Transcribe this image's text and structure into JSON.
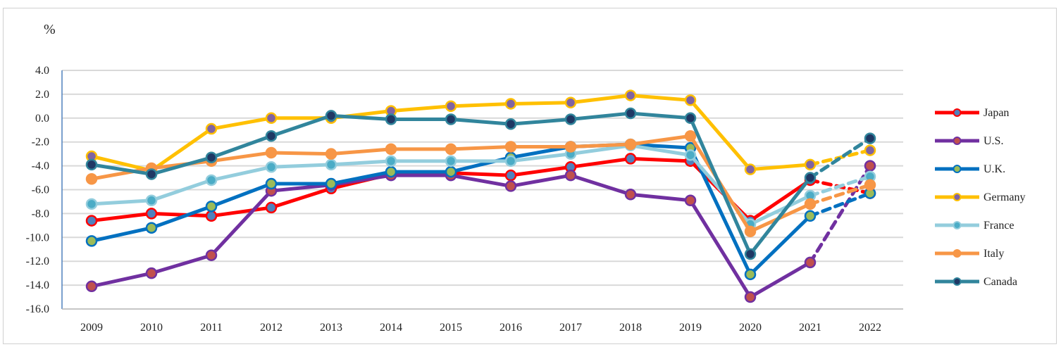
{
  "chart_data": {
    "type": "line",
    "unit_label": "%",
    "title": "",
    "xlabel": "",
    "ylabel": "%",
    "ylim": [
      -16,
      4
    ],
    "y_ticks": [
      "4.0",
      "2.0",
      "0.0",
      "-2.0",
      "-4.0",
      "-6.0",
      "-8.0",
      "-10.0",
      "-12.0",
      "-14.0",
      "-16.0"
    ],
    "y_tick_values": [
      4,
      2,
      0,
      -2,
      -4,
      -6,
      -8,
      -10,
      -12,
      -14,
      -16
    ],
    "categories": [
      "2009",
      "2010",
      "2011",
      "2012",
      "2013",
      "2014",
      "2015",
      "2016",
      "2017",
      "2018",
      "2019",
      "2020",
      "2021",
      "2022"
    ],
    "dashed_segment": "2021-2022",
    "grid": "horizontal",
    "legend_position": "right",
    "series": [
      {
        "name": "Japan",
        "color": "#ff0000",
        "marker_fill": "#4f81bd",
        "values": [
          -8.6,
          -8.0,
          -8.2,
          -7.5,
          -5.9,
          -4.7,
          -4.6,
          -4.8,
          -4.1,
          -3.4,
          -3.6,
          -8.6,
          -5.2,
          -6.3
        ]
      },
      {
        "name": "U.S.",
        "color": "#7030a0",
        "marker_fill": "#c0504d",
        "values": [
          -14.1,
          -13.0,
          -11.5,
          -6.1,
          -5.6,
          -4.8,
          -4.8,
          -5.7,
          -4.8,
          -6.4,
          -6.9,
          -15.0,
          -12.1,
          -4.0
        ]
      },
      {
        "name": "U.K.",
        "color": "#0070c0",
        "marker_fill": "#9bbb59",
        "values": [
          -10.3,
          -9.2,
          -7.4,
          -5.5,
          -5.5,
          -4.5,
          -4.5,
          -3.3,
          -2.4,
          -2.2,
          -2.5,
          -13.1,
          -8.2,
          -6.3
        ]
      },
      {
        "name": "Germany",
        "color": "#ffc000",
        "marker_fill": "#8064a2",
        "values": [
          -3.2,
          -4.4,
          -0.9,
          0.0,
          0.0,
          0.6,
          1.0,
          1.2,
          1.3,
          1.9,
          1.5,
          -4.3,
          -3.9,
          -2.7
        ]
      },
      {
        "name": "France",
        "color": "#93cddd",
        "marker_fill": "#4bacc6",
        "values": [
          -7.2,
          -6.9,
          -5.2,
          -4.1,
          -3.9,
          -3.6,
          -3.6,
          -3.6,
          -3.0,
          -2.3,
          -3.1,
          -8.9,
          -6.5,
          -4.9
        ]
      },
      {
        "name": "Italy",
        "color": "#f79646",
        "marker_fill": "#f79646",
        "values": [
          -5.1,
          -4.2,
          -3.6,
          -2.9,
          -3.0,
          -2.6,
          -2.6,
          -2.4,
          -2.4,
          -2.2,
          -1.5,
          -9.5,
          -7.2,
          -5.6
        ]
      },
      {
        "name": "Canada",
        "color": "#31859c",
        "marker_fill": "#1f3864",
        "values": [
          -3.9,
          -4.7,
          -3.3,
          -1.5,
          0.2,
          -0.1,
          -0.1,
          -0.5,
          -0.1,
          0.4,
          0.0,
          -11.4,
          -5.0,
          -1.7
        ]
      }
    ]
  }
}
